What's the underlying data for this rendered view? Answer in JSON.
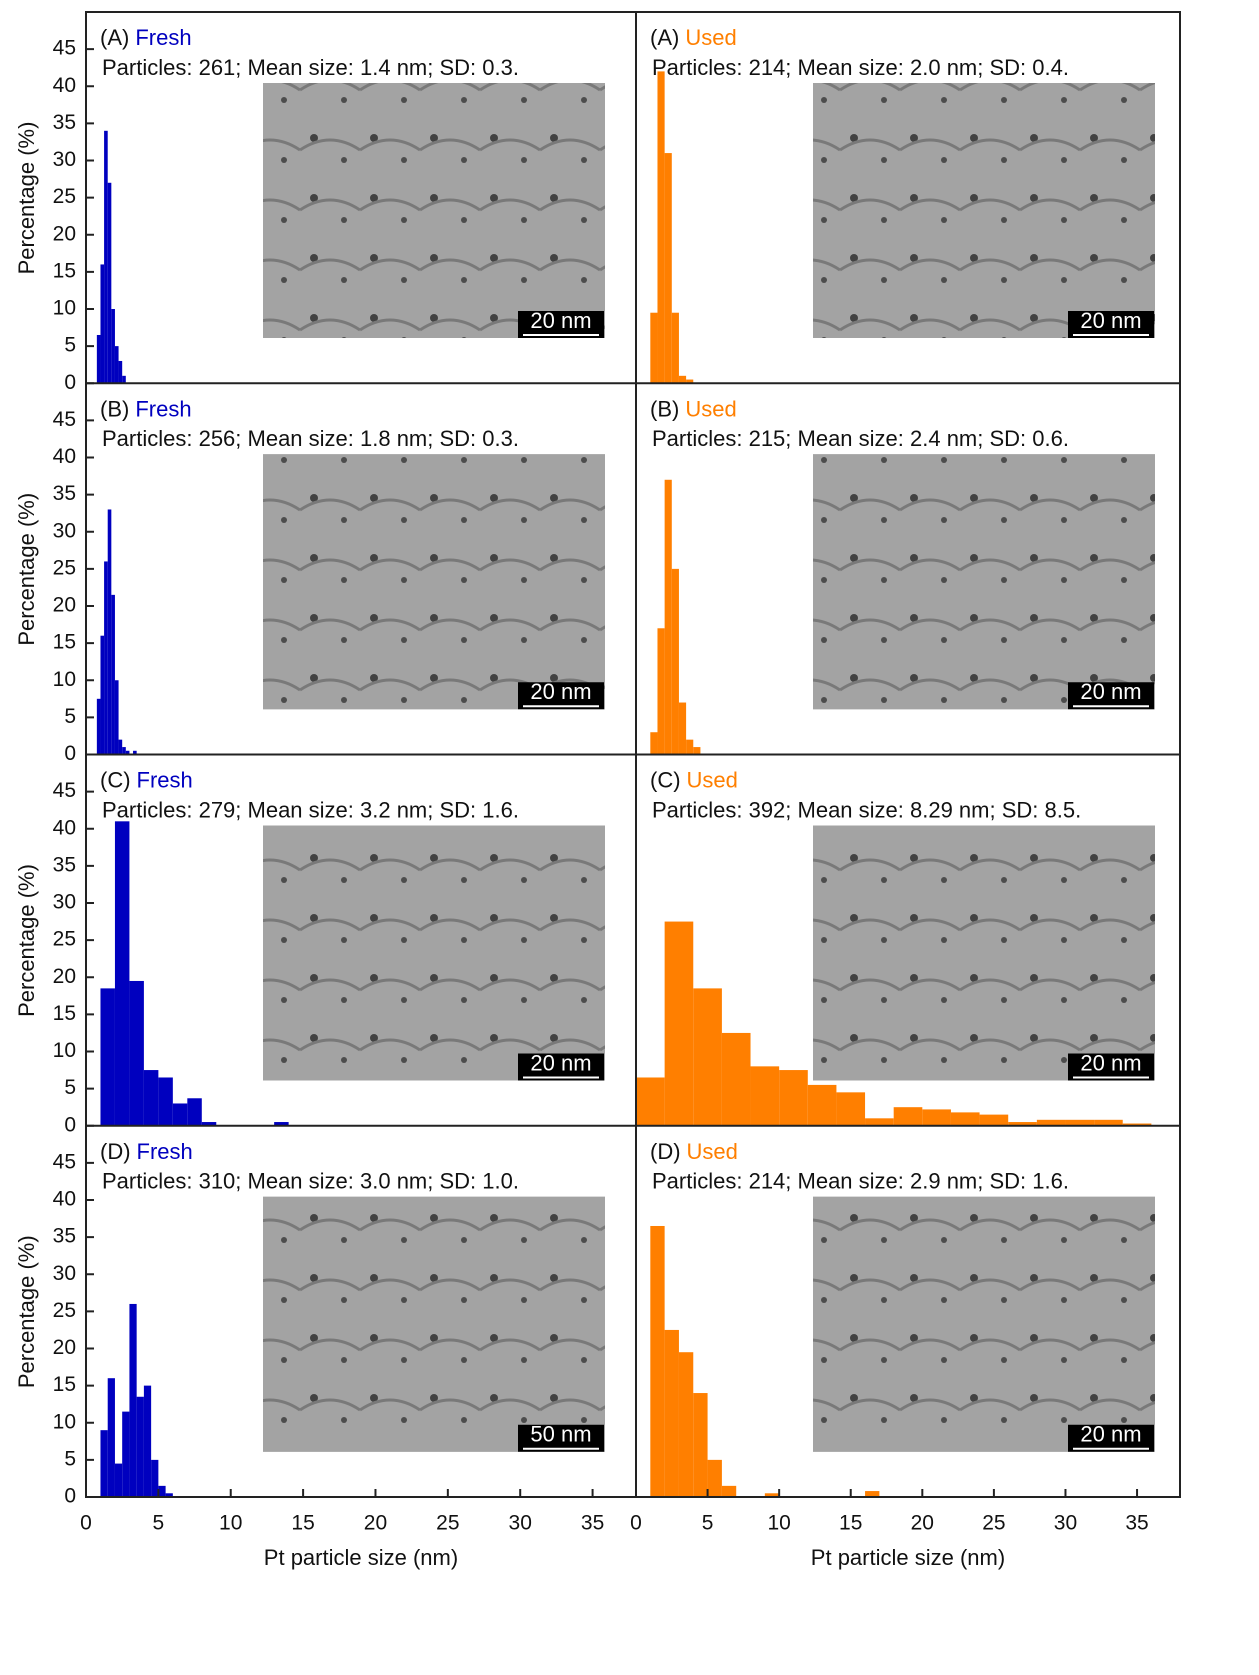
{
  "chart_data": [
    {
      "type": "histogram",
      "panel": "(A)",
      "sample": "Fresh",
      "annotation": "Particles: 261; Mean size: 1.4 nm; SD: 0.3.",
      "scale_bar": "20 nm",
      "color": "#0000bf",
      "ylabel": "Percentage (%)",
      "bins": [
        0.75,
        1.0,
        1.25,
        1.5,
        1.75,
        2.0,
        2.25,
        2.5,
        2.75
      ],
      "values": [
        6.5,
        16,
        34,
        27,
        10,
        5,
        3,
        1
      ],
      "xlim": [
        0,
        38
      ],
      "ylim": [
        0,
        50
      ],
      "yticks": [
        0,
        5,
        10,
        15,
        20,
        25,
        30,
        35,
        40,
        45
      ]
    },
    {
      "type": "histogram",
      "panel": "(A)",
      "sample": "Used",
      "annotation": "Particles: 214; Mean size: 2.0 nm; SD: 0.4.",
      "scale_bar": "20 nm",
      "color": "#ff7f00",
      "bins": [
        1.0,
        1.5,
        2.0,
        2.5,
        3.0,
        3.5,
        4.0
      ],
      "values": [
        9.5,
        42,
        31,
        9.5,
        1,
        0.5
      ],
      "xlim": [
        0,
        38
      ],
      "ylim": [
        0,
        50
      ]
    },
    {
      "type": "histogram",
      "panel": "(B)",
      "sample": "Fresh",
      "annotation": "Particles: 256; Mean size: 1.8 nm; SD: 0.3.",
      "scale_bar": "20 nm",
      "color": "#0000bf",
      "ylabel": "Percentage (%)",
      "bins": [
        0.75,
        1.0,
        1.25,
        1.5,
        1.75,
        2.0,
        2.25,
        2.5,
        2.75,
        3.0,
        3.25,
        3.5
      ],
      "values": [
        7.5,
        16,
        26,
        33,
        21.5,
        10,
        2,
        1,
        0.5,
        0,
        0.5
      ],
      "xlim": [
        0,
        38
      ],
      "ylim": [
        0,
        50
      ],
      "yticks": [
        0,
        5,
        10,
        15,
        20,
        25,
        30,
        35,
        40,
        45
      ]
    },
    {
      "type": "histogram",
      "panel": "(B)",
      "sample": "Used",
      "annotation": "Particles: 215; Mean size: 2.4 nm; SD: 0.6.",
      "scale_bar": "20 nm",
      "color": "#ff7f00",
      "bins": [
        1.0,
        1.5,
        2.0,
        2.5,
        3.0,
        3.5,
        4.0,
        4.5
      ],
      "values": [
        3,
        17,
        37,
        25,
        7,
        2,
        1
      ],
      "xlim": [
        0,
        38
      ],
      "ylim": [
        0,
        50
      ]
    },
    {
      "type": "histogram",
      "panel": "(C)",
      "sample": "Fresh",
      "annotation": "Particles: 279; Mean size: 3.2 nm; SD: 1.6.",
      "scale_bar": "20 nm",
      "color": "#0000bf",
      "ylabel": "Percentage (%)",
      "bins": [
        1,
        2,
        3,
        4,
        5,
        6,
        7,
        8,
        9,
        10,
        11,
        12,
        13,
        14
      ],
      "values": [
        18.5,
        41,
        19.5,
        7.5,
        6.5,
        3,
        3.7,
        0.5,
        0,
        0,
        0,
        0,
        0.5
      ],
      "xlim": [
        0,
        38
      ],
      "ylim": [
        0,
        50
      ],
      "yticks": [
        0,
        5,
        10,
        15,
        20,
        25,
        30,
        35,
        40,
        45
      ]
    },
    {
      "type": "histogram",
      "panel": "(C)",
      "sample": "Used",
      "annotation": "Particles: 392; Mean size: 8.29 nm; SD: 8.5.",
      "scale_bar": "20 nm",
      "color": "#ff7f00",
      "bins": [
        0,
        2,
        4,
        6,
        8,
        10,
        12,
        14,
        16,
        18,
        20,
        22,
        24,
        26,
        28,
        30,
        32,
        34,
        36
      ],
      "values": [
        6.5,
        27.5,
        18.5,
        12.5,
        8,
        7.5,
        5.5,
        4.5,
        1,
        2.5,
        2.2,
        1.8,
        1.5,
        0.5,
        0.8,
        0.8,
        0.8,
        0.3
      ],
      "xlim": [
        0,
        38
      ],
      "ylim": [
        0,
        50
      ]
    },
    {
      "type": "histogram",
      "panel": "(D)",
      "sample": "Fresh",
      "annotation": "Particles: 310; Mean size: 3.0 nm; SD: 1.0.",
      "scale_bar": "50 nm",
      "color": "#0000bf",
      "ylabel": "Percentage (%)",
      "xlabel": "Pt particle size (nm)",
      "bins": [
        1.0,
        1.5,
        2.0,
        2.5,
        3.0,
        3.5,
        4.0,
        4.5,
        5.0,
        5.5,
        6.0
      ],
      "values": [
        9,
        16,
        4.5,
        11.5,
        26,
        13.5,
        15,
        5,
        1.5,
        0.5
      ],
      "xlim": [
        0,
        38
      ],
      "ylim": [
        0,
        50
      ],
      "xticks": [
        0,
        5,
        10,
        15,
        20,
        25,
        30,
        35
      ],
      "yticks": [
        0,
        5,
        10,
        15,
        20,
        25,
        30,
        35,
        40,
        45
      ]
    },
    {
      "type": "histogram",
      "panel": "(D)",
      "sample": "Used",
      "annotation": "Particles: 214; Mean size: 2.9 nm; SD: 1.6.",
      "scale_bar": "20 nm",
      "color": "#ff7f00",
      "xlabel": "Pt particle size (nm)",
      "bins": [
        1,
        2,
        3,
        4,
        5,
        6,
        7,
        8,
        9,
        10,
        11,
        12,
        13,
        14,
        15,
        16,
        17
      ],
      "values": [
        36.5,
        22.5,
        19.5,
        14,
        5,
        1.5,
        0,
        0,
        0.5,
        0,
        0,
        0,
        0,
        0,
        0,
        0.8
      ],
      "xlim": [
        0,
        38
      ],
      "ylim": [
        0,
        50
      ],
      "xticks": [
        0,
        5,
        10,
        15,
        20,
        25,
        30,
        35
      ]
    }
  ]
}
